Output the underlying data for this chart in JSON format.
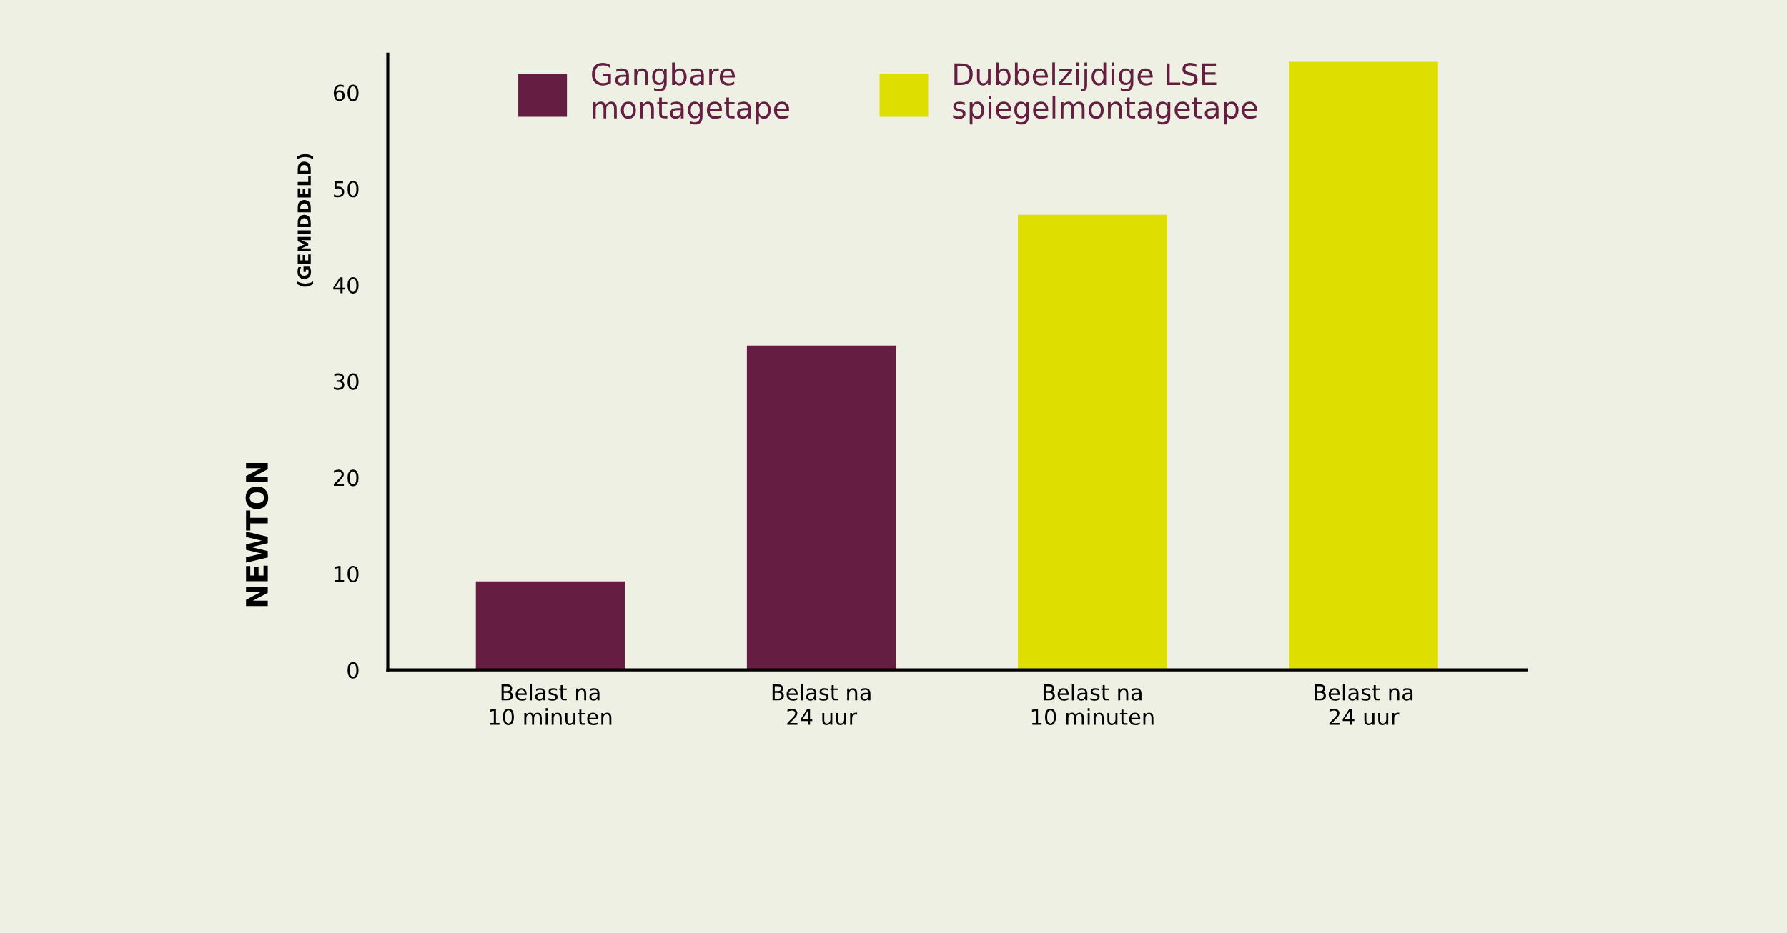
{
  "chart_data": {
    "type": "bar",
    "ylabel": "NEWTON",
    "annotations": [
      "(GEMIDDELD)"
    ],
    "categories": [
      "Belast na\n10 minuten",
      "Belast na\n24 uur",
      "Belast na\n10 minuten",
      "Belast na\n24 uur"
    ],
    "series": [
      {
        "name": "Gangbare\nmontagetape",
        "color": "#651e42",
        "values": [
          9.2,
          33.7,
          null,
          null
        ]
      },
      {
        "name": "Dubbelzijdige LSE\nspiegelmontagetape",
        "color": "#dede00",
        "values": [
          null,
          null,
          47.3,
          63.2
        ]
      }
    ],
    "ylim": [
      0,
      64
    ],
    "yticks": [
      0,
      10,
      20,
      30,
      40,
      50,
      60
    ],
    "grid": false,
    "legend": "top"
  }
}
